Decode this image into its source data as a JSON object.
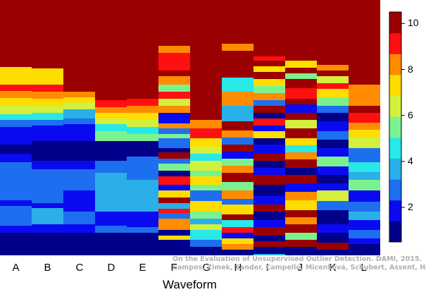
{
  "chart_data": {
    "type": "heatmap",
    "title": "",
    "xlabel": "Waveform",
    "ylabel": "",
    "categories": [
      "A",
      "B",
      "C",
      "D",
      "E",
      "F",
      "G",
      "H",
      "I",
      "J",
      "K",
      "L"
    ],
    "colorbar": {
      "range": [
        0.5,
        10.5
      ],
      "ticks": [
        2,
        4,
        6,
        8,
        10
      ],
      "palette": [
        "#00008b",
        "#0a0af0",
        "#1e6ff0",
        "#2aafe8",
        "#28e8e8",
        "#7cf28e",
        "#d2f03c",
        "#ffdd00",
        "#ff8c00",
        "#ff1010",
        "#9a0000"
      ]
    },
    "columns": [
      {
        "label": "A",
        "segments": [
          [
            330,
            1
          ],
          [
            320,
            2
          ],
          [
            292,
            3
          ],
          [
            284,
            2
          ],
          [
            230,
            3
          ],
          [
            218,
            2
          ],
          [
            205,
            1
          ],
          [
            180,
            2
          ],
          [
            170,
            3
          ],
          [
            162,
            5
          ],
          [
            150,
            7
          ],
          [
            139,
            8
          ],
          [
            129,
            9
          ],
          [
            120,
            10
          ],
          [
            95,
            8
          ],
          [
            80,
            11
          ]
        ]
      },
      {
        "label": "B",
        "segments": [
          [
            330,
            1
          ],
          [
            318,
            2
          ],
          [
            295,
            4
          ],
          [
            288,
            2
          ],
          [
            240,
            3
          ],
          [
            228,
            2
          ],
          [
            200,
            1
          ],
          [
            178,
            2
          ],
          [
            170,
            3
          ],
          [
            160,
            5
          ],
          [
            150,
            7
          ],
          [
            140,
            8
          ],
          [
            130,
            9
          ],
          [
            120,
            10
          ],
          [
            97,
            8
          ],
          [
            80,
            11
          ]
        ]
      },
      {
        "label": "C",
        "segments": [
          [
            330,
            1
          ],
          [
            318,
            2
          ],
          [
            300,
            3
          ],
          [
            270,
            2
          ],
          [
            240,
            3
          ],
          [
            228,
            2
          ],
          [
            200,
            1
          ],
          [
            176,
            2
          ],
          [
            168,
            3
          ],
          [
            155,
            4
          ],
          [
            145,
            7
          ],
          [
            138,
            8
          ],
          [
            130,
            9
          ],
          [
            122,
            11
          ]
        ]
      },
      {
        "label": "D",
        "segments": [
          [
            330,
            1
          ],
          [
            320,
            3
          ],
          [
            300,
            2
          ],
          [
            245,
            4
          ],
          [
            228,
            3
          ],
          [
            200,
            1
          ],
          [
            186,
            6
          ],
          [
            176,
            5
          ],
          [
            168,
            7
          ],
          [
            160,
            8
          ],
          [
            152,
            9
          ],
          [
            142,
            10
          ],
          [
            122,
            11
          ]
        ]
      },
      {
        "label": "E",
        "segments": [
          [
            330,
            1
          ],
          [
            322,
            3
          ],
          [
            300,
            2
          ],
          [
            255,
            4
          ],
          [
            222,
            3
          ],
          [
            200,
            1
          ],
          [
            190,
            6
          ],
          [
            180,
            5
          ],
          [
            170,
            7
          ],
          [
            160,
            8
          ],
          [
            150,
            9
          ],
          [
            140,
            10
          ],
          [
            122,
            11
          ]
        ]
      },
      {
        "label": "F",
        "segments": [
          [
            340,
            1
          ],
          [
            334,
            8
          ],
          [
            326,
            1
          ],
          [
            310,
            9
          ],
          [
            302,
            3
          ],
          [
            296,
            10
          ],
          [
            288,
            4
          ],
          [
            280,
            11
          ],
          [
            270,
            8
          ],
          [
            262,
            2
          ],
          [
            250,
            10
          ],
          [
            242,
            1
          ],
          [
            232,
            6
          ],
          [
            225,
            3
          ],
          [
            216,
            11
          ],
          [
            210,
            1
          ],
          [
            196,
            3
          ],
          [
            190,
            6
          ],
          [
            182,
            3
          ],
          [
            175,
            9
          ],
          [
            160,
            2
          ],
          [
            150,
            9
          ],
          [
            140,
            7
          ],
          [
            130,
            10
          ],
          [
            120,
            6
          ],
          [
            108,
            9
          ],
          [
            100,
            11
          ],
          [
            75,
            10
          ],
          [
            65,
            9
          ],
          [
            56,
            11
          ]
        ]
      },
      {
        "label": "G",
        "segments": [
          [
            350,
            1
          ],
          [
            340,
            3
          ],
          [
            326,
            5
          ],
          [
            318,
            7
          ],
          [
            310,
            4
          ],
          [
            300,
            6
          ],
          [
            285,
            8
          ],
          [
            270,
            3
          ],
          [
            262,
            6
          ],
          [
            250,
            8
          ],
          [
            242,
            6
          ],
          [
            228,
            7
          ],
          [
            218,
            5
          ],
          [
            208,
            7
          ],
          [
            196,
            8
          ],
          [
            182,
            10
          ],
          [
            170,
            9
          ],
          [
            160,
            11
          ]
        ]
      },
      {
        "label": "H",
        "segments": [
          [
            354,
            1
          ],
          [
            346,
            9
          ],
          [
            338,
            8
          ],
          [
            330,
            2
          ],
          [
            322,
            10
          ],
          [
            312,
            5
          ],
          [
            304,
            11
          ],
          [
            290,
            8
          ],
          [
            282,
            3
          ],
          [
            270,
            9
          ],
          [
            258,
            6
          ],
          [
            245,
            11
          ],
          [
            235,
            9
          ],
          [
            225,
            6
          ],
          [
            215,
            2
          ],
          [
            205,
            11
          ],
          [
            195,
            3
          ],
          [
            185,
            9
          ],
          [
            172,
            11
          ],
          [
            150,
            4
          ],
          [
            130,
            9
          ],
          [
            110,
            5
          ],
          [
            72,
            11
          ],
          [
            62,
            9
          ],
          [
            55,
            11
          ]
        ]
      },
      {
        "label": "I",
        "segments": [
          [
            360,
            4
          ],
          [
            350,
            1
          ],
          [
            342,
            11
          ],
          [
            334,
            1
          ],
          [
            322,
            11
          ],
          [
            312,
            2
          ],
          [
            300,
            1
          ],
          [
            290,
            11
          ],
          [
            278,
            2
          ],
          [
            262,
            1
          ],
          [
            248,
            11
          ],
          [
            238,
            2
          ],
          [
            228,
            1
          ],
          [
            218,
            11
          ],
          [
            205,
            2
          ],
          [
            196,
            1
          ],
          [
            186,
            8
          ],
          [
            178,
            2
          ],
          [
            168,
            10
          ],
          [
            160,
            1
          ],
          [
            150,
            11
          ],
          [
            142,
            3
          ],
          [
            132,
            9
          ],
          [
            122,
            6
          ],
          [
            112,
            8
          ],
          [
            102,
            11
          ],
          [
            94,
            8
          ],
          [
            86,
            11
          ],
          [
            80,
            10
          ],
          [
            72,
            11
          ]
        ]
      },
      {
        "label": "J",
        "segments": [
          [
            350,
            1
          ],
          [
            340,
            11
          ],
          [
            330,
            6
          ],
          [
            318,
            11
          ],
          [
            308,
            9
          ],
          [
            298,
            11
          ],
          [
            284,
            8
          ],
          [
            272,
            9
          ],
          [
            260,
            2
          ],
          [
            248,
            11
          ],
          [
            238,
            1
          ],
          [
            226,
            11
          ],
          [
            216,
            9
          ],
          [
            206,
            5
          ],
          [
            196,
            8
          ],
          [
            182,
            11
          ],
          [
            170,
            7
          ],
          [
            160,
            11
          ],
          [
            148,
            2
          ],
          [
            140,
            11
          ],
          [
            125,
            10
          ],
          [
            112,
            11
          ],
          [
            104,
            6
          ],
          [
            96,
            11
          ],
          [
            86,
            8
          ],
          [
            80,
            11
          ]
        ]
      },
      {
        "label": "K",
        "segments": [
          [
            354,
            1
          ],
          [
            344,
            11
          ],
          [
            330,
            1
          ],
          [
            318,
            2
          ],
          [
            298,
            1
          ],
          [
            285,
            3
          ],
          [
            270,
            7
          ],
          [
            260,
            2
          ],
          [
            248,
            1
          ],
          [
            236,
            2
          ],
          [
            222,
            6
          ],
          [
            210,
            2
          ],
          [
            198,
            1
          ],
          [
            186,
            3
          ],
          [
            172,
            2
          ],
          [
            160,
            1
          ],
          [
            150,
            3
          ],
          [
            138,
            6
          ],
          [
            126,
            8
          ],
          [
            118,
            10
          ],
          [
            108,
            7
          ],
          [
            100,
            11
          ],
          [
            92,
            9
          ],
          [
            84,
            11
          ]
        ]
      },
      {
        "label": "L",
        "segments": [
          [
            346,
            1
          ],
          [
            338,
            2
          ],
          [
            326,
            3
          ],
          [
            312,
            2
          ],
          [
            300,
            4
          ],
          [
            286,
            3
          ],
          [
            270,
            2
          ],
          [
            255,
            6
          ],
          [
            244,
            4
          ],
          [
            230,
            5
          ],
          [
            210,
            3
          ],
          [
            195,
            7
          ],
          [
            184,
            8
          ],
          [
            174,
            9
          ],
          [
            160,
            10
          ],
          [
            150,
            11
          ],
          [
            120,
            9
          ],
          [
            115,
            11
          ]
        ]
      }
    ]
  },
  "watermark": {
    "line1": "On the Evaluation of Unsupervised Outlier Detection. DAMI, 2015.",
    "line2": "Campos, Zimek, Sander, Campello, Micenková, Schubert, Assent, Houle"
  }
}
